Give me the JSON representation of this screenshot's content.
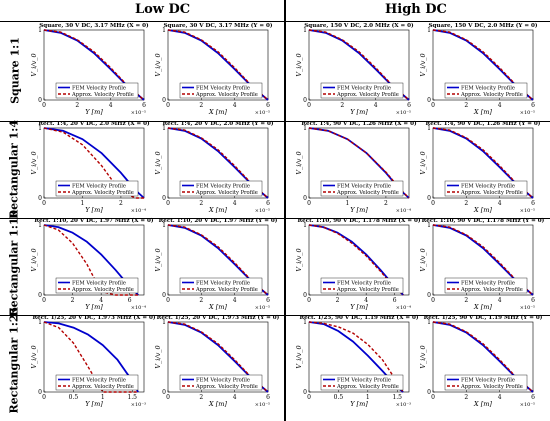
{
  "headers": {
    "columns": [
      "Low DC",
      "High DC"
    ],
    "rows": [
      "Square 1:1",
      "Rectangular 1:4",
      "Rectangular 1:10",
      "Rectangular 1:25"
    ]
  },
  "legend": {
    "fem": "FEM Velocity Profile",
    "approx": "Approx. Velocity Profile"
  },
  "colors": {
    "fem": "#0000cc",
    "approx": "#b30000"
  },
  "ylabel": "V_i/v_0",
  "chart_data": [
    {
      "type": "line",
      "title": "Square, 30 V DC, 3.17 MHz (X = 0)",
      "xlabel": "Y [m]",
      "multiplier": "×10⁻⁵",
      "xlim": [
        0,
        6
      ],
      "ylim": [
        0,
        1
      ],
      "xticks": [
        "0",
        "2",
        "4",
        "6"
      ],
      "yticks": [
        "0",
        "1"
      ],
      "x": [
        0,
        1,
        2,
        3,
        4,
        5,
        6
      ],
      "series": [
        {
          "name": "FEM Velocity Profile",
          "values": [
            1,
            0.96,
            0.85,
            0.67,
            0.44,
            0.2,
            0
          ]
        },
        {
          "name": "Approx. Velocity Profile",
          "values": [
            1,
            0.97,
            0.86,
            0.69,
            0.46,
            0.21,
            0
          ]
        }
      ]
    },
    {
      "type": "line",
      "title": "Square, 30 V DC, 3.17 MHz (Y = 0)",
      "xlabel": "X [m]",
      "multiplier": "×10⁻⁵",
      "xlim": [
        0,
        6
      ],
      "ylim": [
        0,
        1
      ],
      "xticks": [
        "0",
        "2",
        "4",
        "6"
      ],
      "yticks": [
        "0",
        "1"
      ],
      "x": [
        0,
        1,
        2,
        3,
        4,
        5,
        6
      ],
      "series": [
        {
          "name": "FEM Velocity Profile",
          "values": [
            1,
            0.96,
            0.85,
            0.67,
            0.44,
            0.2,
            0
          ]
        },
        {
          "name": "Approx. Velocity Profile",
          "values": [
            1,
            0.97,
            0.86,
            0.69,
            0.46,
            0.21,
            0
          ]
        }
      ]
    },
    {
      "type": "line",
      "title": "Square, 150 V DC, 2.0 MHz (X = 0)",
      "xlabel": "Y [m]",
      "multiplier": "×10⁻⁵",
      "xlim": [
        0,
        6
      ],
      "ylim": [
        0,
        1
      ],
      "xticks": [
        "0",
        "2",
        "4",
        "6"
      ],
      "yticks": [
        "0",
        "1"
      ],
      "x": [
        0,
        1,
        2,
        3,
        4,
        5,
        6
      ],
      "series": [
        {
          "name": "FEM Velocity Profile",
          "values": [
            1,
            0.96,
            0.85,
            0.67,
            0.44,
            0.2,
            0
          ]
        },
        {
          "name": "Approx. Velocity Profile",
          "values": [
            1,
            0.97,
            0.86,
            0.69,
            0.46,
            0.21,
            0
          ]
        }
      ]
    },
    {
      "type": "line",
      "title": "Square, 150 V DC, 2.0 MHz (Y = 0)",
      "xlabel": "X [m]",
      "multiplier": "×10⁻⁵",
      "xlim": [
        0,
        6
      ],
      "ylim": [
        0,
        1
      ],
      "xticks": [
        "0",
        "2",
        "4",
        "6"
      ],
      "yticks": [
        "0",
        "1"
      ],
      "x": [
        0,
        1,
        2,
        3,
        4,
        5,
        6
      ],
      "series": [
        {
          "name": "FEM Velocity Profile",
          "values": [
            1,
            0.96,
            0.85,
            0.67,
            0.44,
            0.2,
            0
          ]
        },
        {
          "name": "Approx. Velocity Profile",
          "values": [
            1,
            0.97,
            0.86,
            0.69,
            0.46,
            0.21,
            0
          ]
        }
      ]
    },
    {
      "type": "line",
      "title": "Rect. 1:4, 20 V DC, 2.0 MHz (X = 0)",
      "xlabel": "Y [m]",
      "multiplier": "×10⁻⁴",
      "xlim": [
        0,
        2.6
      ],
      "ylim": [
        0,
        1
      ],
      "xticks": [
        "0",
        "1",
        "2"
      ],
      "yticks": [
        "0",
        "1"
      ],
      "x": [
        0,
        0.5,
        1,
        1.5,
        2,
        2.4,
        2.6
      ],
      "series": [
        {
          "name": "FEM Velocity Profile",
          "values": [
            1,
            0.96,
            0.84,
            0.64,
            0.36,
            0.1,
            0
          ]
        },
        {
          "name": "Approx. Velocity Profile",
          "values": [
            1,
            0.94,
            0.76,
            0.46,
            0.08,
            0,
            0
          ]
        }
      ]
    },
    {
      "type": "line",
      "title": "Rect. 1:4, 20 V DC, 2.0 MHz (Y = 0)",
      "xlabel": "X [m]",
      "multiplier": "×10⁻⁵",
      "xlim": [
        0,
        6
      ],
      "ylim": [
        0,
        1
      ],
      "xticks": [
        "0",
        "2",
        "4",
        "6"
      ],
      "yticks": [
        "0",
        "1"
      ],
      "x": [
        0,
        1,
        2,
        3,
        4,
        5,
        6
      ],
      "series": [
        {
          "name": "FEM Velocity Profile",
          "values": [
            1,
            0.96,
            0.85,
            0.67,
            0.44,
            0.2,
            0
          ]
        },
        {
          "name": "Approx. Velocity Profile",
          "values": [
            1,
            0.97,
            0.86,
            0.69,
            0.46,
            0.21,
            0
          ]
        }
      ]
    },
    {
      "type": "line",
      "title": "Rect. 1:4, 90 V DC, 1.26 MHz (X = 0)",
      "xlabel": "Y [m]",
      "multiplier": "×10⁻⁴",
      "xlim": [
        0,
        2.6
      ],
      "ylim": [
        0,
        1
      ],
      "xticks": [
        "0",
        "1",
        "2"
      ],
      "yticks": [
        "0",
        "1"
      ],
      "x": [
        0,
        0.5,
        1,
        1.5,
        2,
        2.4,
        2.6
      ],
      "series": [
        {
          "name": "FEM Velocity Profile",
          "values": [
            1,
            0.96,
            0.84,
            0.64,
            0.36,
            0.1,
            0
          ]
        },
        {
          "name": "Approx. Velocity Profile",
          "values": [
            1,
            0.96,
            0.84,
            0.64,
            0.37,
            0.11,
            0
          ]
        }
      ]
    },
    {
      "type": "line",
      "title": "Rect. 1:4, 90 V DC, 1.26 MHz (Y = 0)",
      "xlabel": "X [m]",
      "multiplier": "×10⁻⁵",
      "xlim": [
        0,
        6
      ],
      "ylim": [
        0,
        1
      ],
      "xticks": [
        "0",
        "2",
        "4",
        "6"
      ],
      "yticks": [
        "0",
        "1"
      ],
      "x": [
        0,
        1,
        2,
        3,
        4,
        5,
        6
      ],
      "series": [
        {
          "name": "FEM Velocity Profile",
          "values": [
            1,
            0.96,
            0.85,
            0.67,
            0.44,
            0.2,
            0
          ]
        },
        {
          "name": "Approx. Velocity Profile",
          "values": [
            1,
            0.97,
            0.86,
            0.69,
            0.46,
            0.21,
            0
          ]
        }
      ]
    },
    {
      "type": "line",
      "title": "Rect. 1:10, 20 V DC, 1.97 MHz (X = 0)",
      "xlabel": "Y [m]",
      "multiplier": "×10⁻⁴",
      "xlim": [
        0,
        7
      ],
      "ylim": [
        0,
        1
      ],
      "xticks": [
        "0",
        "2",
        "4",
        "6"
      ],
      "yticks": [
        "0",
        "1"
      ],
      "x": [
        0,
        1,
        2,
        3,
        4,
        5,
        6,
        6.6
      ],
      "series": [
        {
          "name": "FEM Velocity Profile",
          "values": [
            1,
            0.97,
            0.89,
            0.76,
            0.58,
            0.36,
            0.12,
            0
          ]
        },
        {
          "name": "Approx. Velocity Profile",
          "values": [
            1,
            0.93,
            0.74,
            0.44,
            0.05,
            0,
            0,
            0
          ]
        }
      ]
    },
    {
      "type": "line",
      "title": "Rect. 1:10, 20 V DC, 1.97 MHz (Y = 0)",
      "xlabel": "X [m]",
      "multiplier": "×10⁻⁵",
      "xlim": [
        0,
        6
      ],
      "ylim": [
        0,
        1
      ],
      "xticks": [
        "0",
        "2",
        "4",
        "6"
      ],
      "yticks": [
        "0",
        "1"
      ],
      "x": [
        0,
        1,
        2,
        3,
        4,
        5,
        6
      ],
      "series": [
        {
          "name": "FEM Velocity Profile",
          "values": [
            1,
            0.96,
            0.85,
            0.67,
            0.44,
            0.2,
            0
          ]
        },
        {
          "name": "Approx. Velocity Profile",
          "values": [
            1,
            0.97,
            0.86,
            0.69,
            0.46,
            0.21,
            0
          ]
        }
      ]
    },
    {
      "type": "line",
      "title": "Rect. 1:10, 90 V DC, 1.178 MHz (X = 0)",
      "xlabel": "Y [m]",
      "multiplier": "×10⁻⁴",
      "xlim": [
        0,
        7
      ],
      "ylim": [
        0,
        1
      ],
      "xticks": [
        "0",
        "2",
        "4",
        "6"
      ],
      "yticks": [
        "0",
        "1"
      ],
      "x": [
        0,
        1,
        2,
        3,
        4,
        5,
        6,
        6.6
      ],
      "series": [
        {
          "name": "FEM Velocity Profile",
          "values": [
            1,
            0.97,
            0.89,
            0.76,
            0.58,
            0.36,
            0.12,
            0
          ]
        },
        {
          "name": "Approx. Velocity Profile",
          "values": [
            1,
            0.97,
            0.88,
            0.74,
            0.56,
            0.34,
            0.1,
            0
          ]
        }
      ]
    },
    {
      "type": "line",
      "title": "Rect. 1:10, 90 V DC, 1.178 MHz (Y = 0)",
      "xlabel": "X [m]",
      "multiplier": "×10⁻⁵",
      "xlim": [
        0,
        6
      ],
      "ylim": [
        0,
        1
      ],
      "xticks": [
        "0",
        "2",
        "4",
        "6"
      ],
      "yticks": [
        "0",
        "1"
      ],
      "x": [
        0,
        1,
        2,
        3,
        4,
        5,
        6
      ],
      "series": [
        {
          "name": "FEM Velocity Profile",
          "values": [
            1,
            0.96,
            0.85,
            0.67,
            0.44,
            0.2,
            0
          ]
        },
        {
          "name": "Approx. Velocity Profile",
          "values": [
            1,
            0.97,
            0.86,
            0.69,
            0.46,
            0.21,
            0
          ]
        }
      ]
    },
    {
      "type": "line",
      "title": "Rect. 1/25, 20 V DC, 1.973 MHz (X = 0)",
      "xlabel": "Y [m]",
      "multiplier": "×10⁻³",
      "xlim": [
        0,
        1.7
      ],
      "ylim": [
        0,
        1
      ],
      "xticks": [
        "0",
        "0.5",
        "1",
        "1.5"
      ],
      "yticks": [
        "0",
        "1"
      ],
      "x": [
        0,
        0.25,
        0.5,
        0.75,
        1,
        1.25,
        1.5,
        1.6
      ],
      "series": [
        {
          "name": "FEM Velocity Profile",
          "values": [
            1,
            0.98,
            0.92,
            0.82,
            0.67,
            0.46,
            0.16,
            0
          ]
        },
        {
          "name": "Approx. Velocity Profile",
          "values": [
            1,
            0.92,
            0.7,
            0.36,
            0,
            0,
            0,
            0
          ]
        }
      ]
    },
    {
      "type": "line",
      "title": "Rect. 1/25, 20 V DC, 1.973 MHz (Y = 0)",
      "xlabel": "X [m]",
      "multiplier": "×10⁻⁵",
      "xlim": [
        0,
        6
      ],
      "ylim": [
        0,
        1
      ],
      "xticks": [
        "0",
        "2",
        "4",
        "6"
      ],
      "yticks": [
        "0",
        "1"
      ],
      "x": [
        0,
        1,
        2,
        3,
        4,
        5,
        6
      ],
      "series": [
        {
          "name": "FEM Velocity Profile",
          "values": [
            1,
            0.96,
            0.85,
            0.67,
            0.44,
            0.2,
            0
          ]
        },
        {
          "name": "Approx. Velocity Profile",
          "values": [
            1,
            0.97,
            0.86,
            0.69,
            0.46,
            0.21,
            0
          ]
        }
      ]
    },
    {
      "type": "line",
      "title": "Rect. 1/25, 90 V DC, 1.19 MHz (X = 0)",
      "xlabel": "Y [m]",
      "multiplier": "×10⁻³",
      "xlim": [
        0,
        1.7
      ],
      "ylim": [
        0,
        1
      ],
      "xticks": [
        "0",
        "0.5",
        "1",
        "1.5"
      ],
      "yticks": [
        "0",
        "1"
      ],
      "x": [
        0,
        0.25,
        0.5,
        0.75,
        1,
        1.25,
        1.5,
        1.6
      ],
      "series": [
        {
          "name": "FEM Velocity Profile",
          "values": [
            1,
            0.97,
            0.87,
            0.72,
            0.52,
            0.3,
            0.07,
            0
          ]
        },
        {
          "name": "Approx. Velocity Profile",
          "values": [
            1,
            0.98,
            0.93,
            0.84,
            0.68,
            0.46,
            0.14,
            0
          ]
        }
      ]
    },
    {
      "type": "line",
      "title": "Rect. 1/25, 90 V DC, 1.19 MHz (Y = 0)",
      "xlabel": "X [m]",
      "multiplier": "×10⁻⁵",
      "xlim": [
        0,
        6
      ],
      "ylim": [
        0,
        1
      ],
      "xticks": [
        "0",
        "2",
        "4",
        "6"
      ],
      "yticks": [
        "0",
        "1"
      ],
      "x": [
        0,
        1,
        2,
        3,
        4,
        5,
        6
      ],
      "series": [
        {
          "name": "FEM Velocity Profile",
          "values": [
            1,
            0.96,
            0.85,
            0.67,
            0.44,
            0.2,
            0
          ]
        },
        {
          "name": "Approx. Velocity Profile",
          "values": [
            1,
            0.97,
            0.86,
            0.69,
            0.46,
            0.21,
            0
          ]
        }
      ]
    }
  ]
}
